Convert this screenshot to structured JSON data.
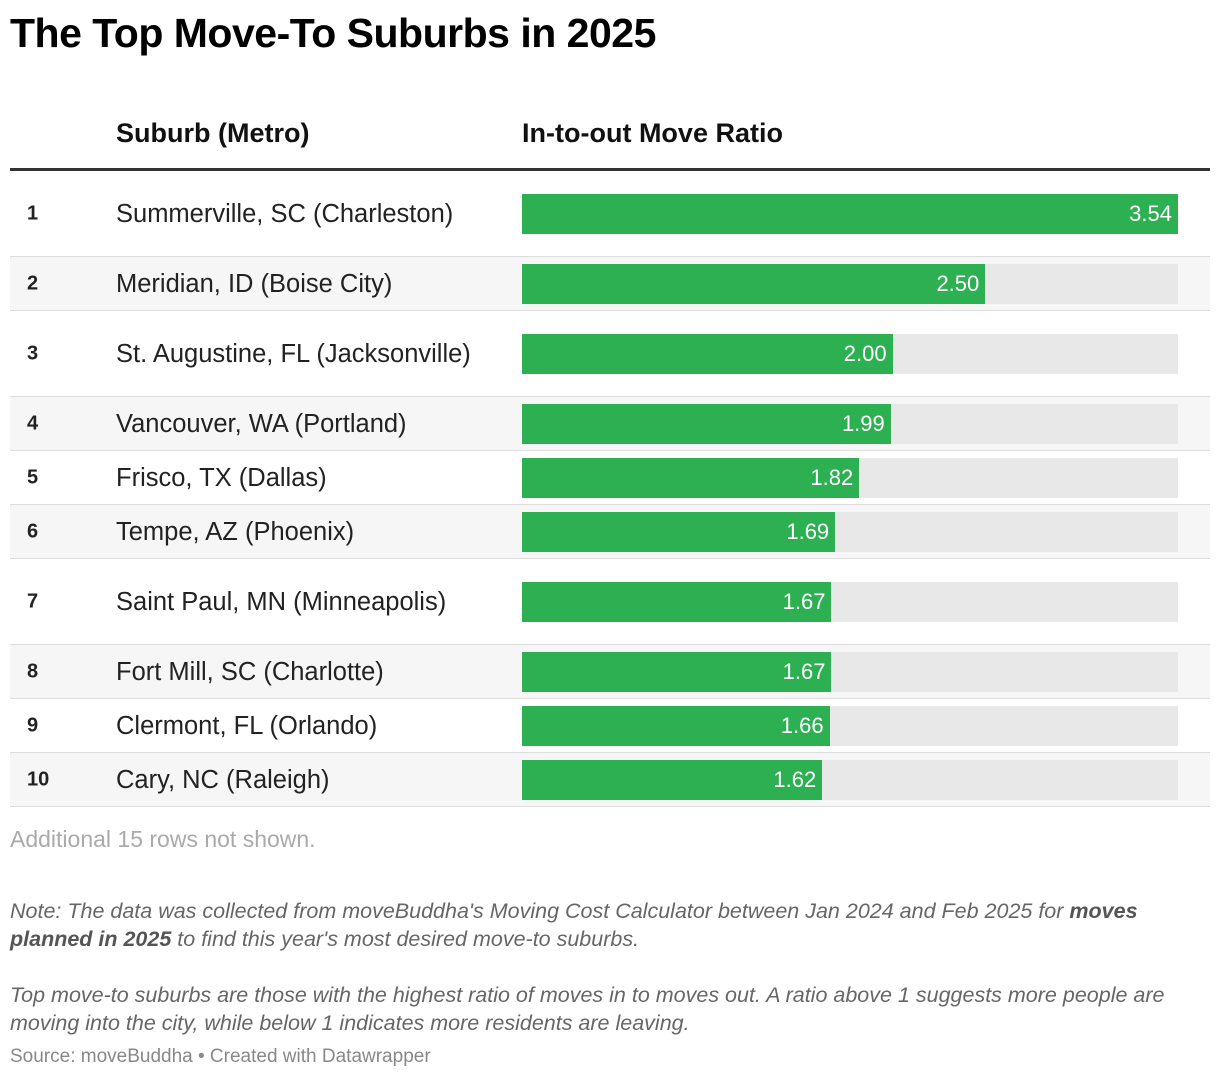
{
  "title": "The Top Move-To Suburbs in 2025",
  "columns": {
    "rank": "",
    "suburb": "Suburb (Metro)",
    "ratio": "In-to-out Move Ratio"
  },
  "rows_note": "Additional 15 rows not shown.",
  "note": {
    "part1": "Note: The data was collected from moveBuddha's Moving Cost Calculator between Jan 2024 and Feb 2025 for ",
    "bold": "moves planned in 2025",
    "part2": " to find this year's most desired move-to suburbs.",
    "paragraph2": "Top move-to suburbs are those with the highest ratio of moves in to moves out. A ratio above 1 suggests more people are moving into the city, while below 1 indicates more residents are leaving."
  },
  "source": "Source: moveBuddha • Created with Datawrapper",
  "colors": {
    "bar": "#2db052",
    "track": "#e8e8e8",
    "alt_row": "#f6f6f6"
  },
  "chart_data": {
    "type": "table",
    "title": "The Top Move-To Suburbs in 2025",
    "columns": [
      "",
      "Suburb (Metro)",
      "In-to-out Move Ratio"
    ],
    "max": 3.54,
    "rows": [
      {
        "rank": "1",
        "suburb": "Summerville, SC (Charleston)",
        "value": 3.54,
        "label": "3.54"
      },
      {
        "rank": "2",
        "suburb": "Meridian, ID (Boise City)",
        "value": 2.5,
        "label": "2.50"
      },
      {
        "rank": "3",
        "suburb": "St. Augustine, FL (Jacksonville)",
        "value": 2.0,
        "label": "2.00"
      },
      {
        "rank": "4",
        "suburb": "Vancouver, WA (Portland)",
        "value": 1.99,
        "label": "1.99"
      },
      {
        "rank": "5",
        "suburb": "Frisco, TX (Dallas)",
        "value": 1.82,
        "label": "1.82"
      },
      {
        "rank": "6",
        "suburb": "Tempe, AZ (Phoenix)",
        "value": 1.69,
        "label": "1.69"
      },
      {
        "rank": "7",
        "suburb": "Saint Paul, MN (Minneapolis)",
        "value": 1.67,
        "label": "1.67"
      },
      {
        "rank": "8",
        "suburb": "Fort Mill, SC (Charlotte)",
        "value": 1.67,
        "label": "1.67"
      },
      {
        "rank": "9",
        "suburb": "Clermont, FL (Orlando)",
        "value": 1.66,
        "label": "1.66"
      },
      {
        "rank": "10",
        "suburb": "Cary, NC (Raleigh)",
        "value": 1.62,
        "label": "1.62"
      }
    ]
  }
}
